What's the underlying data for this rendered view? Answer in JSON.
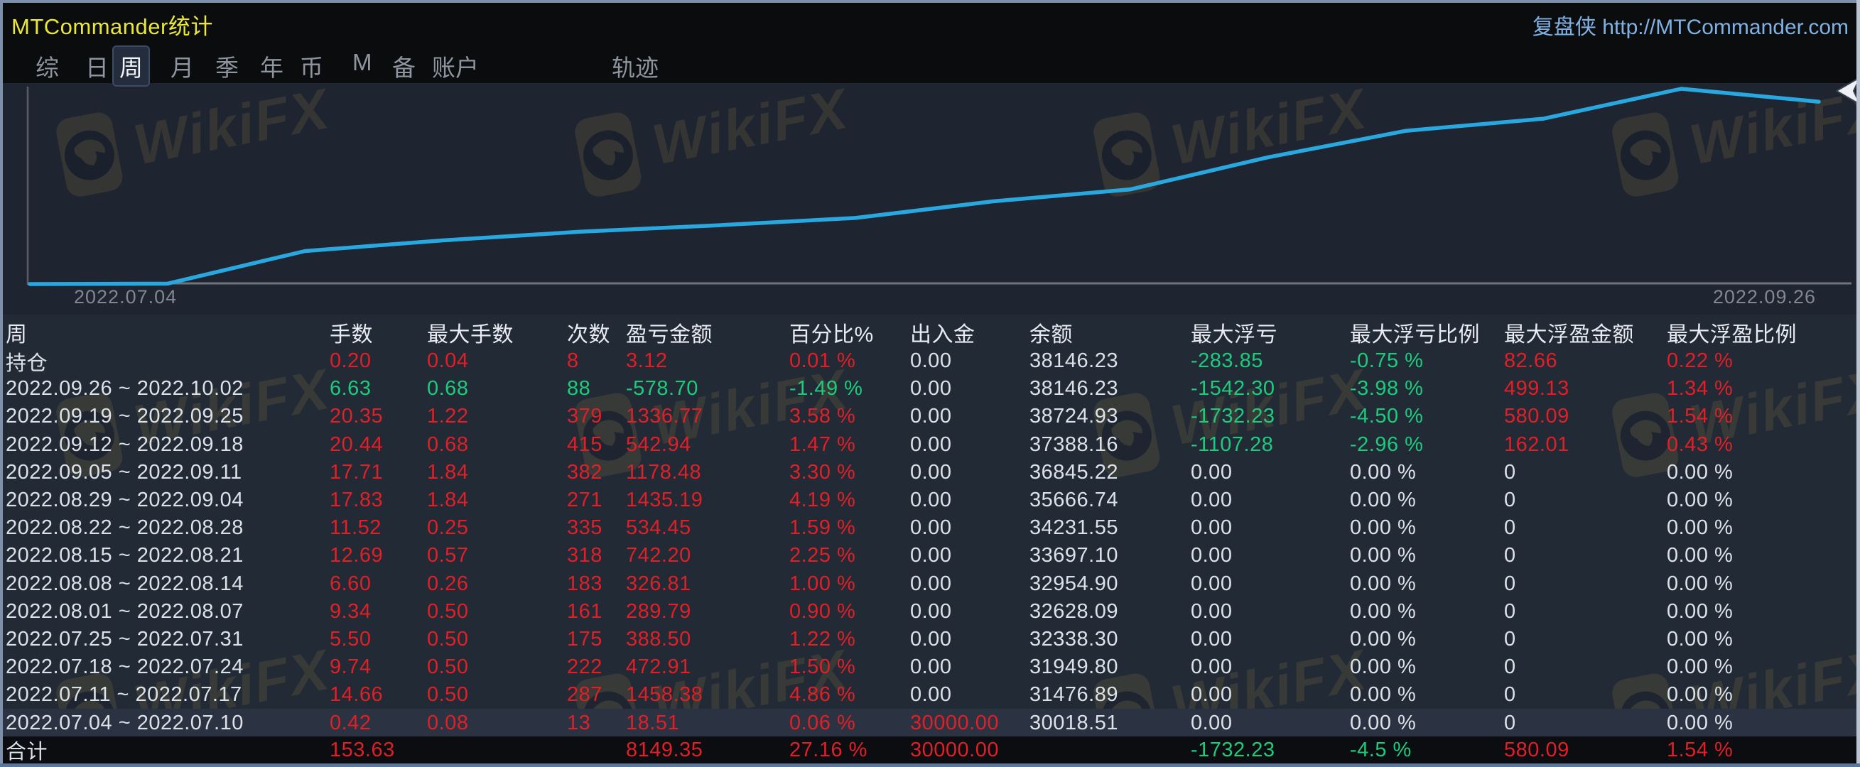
{
  "window": {
    "title": "MTCommander统计",
    "title_color": "#e9e836",
    "top_right_link": "复盘侠 http://MTCommander.com"
  },
  "tabs": [
    {
      "label": "综",
      "active": false
    },
    {
      "label": "日",
      "active": false
    },
    {
      "label": "周",
      "active": true
    },
    {
      "label": "月",
      "active": false
    },
    {
      "label": "季",
      "active": false
    },
    {
      "label": "年",
      "active": false
    },
    {
      "label": "币",
      "active": false
    },
    {
      "label": "M",
      "active": false
    },
    {
      "label": "备",
      "active": false
    },
    {
      "label": "账户",
      "active": false
    },
    {
      "label": "轨迹",
      "active": false
    }
  ],
  "watermark": {
    "brand": "WikiFX"
  },
  "chart_data": {
    "type": "line",
    "title": "weekly equity curve",
    "line_color": "#29a8e0",
    "baseline_value": 30000,
    "x_start_label": "2022.07.04",
    "x_end_label": "2022.09.26",
    "x": [
      "2022.07.04",
      "2022.07.11",
      "2022.07.18",
      "2022.07.25",
      "2022.08.01",
      "2022.08.08",
      "2022.08.15",
      "2022.08.22",
      "2022.08.29",
      "2022.09.05",
      "2022.09.12",
      "2022.09.19",
      "2022.09.26",
      "2022.10.02"
    ],
    "balances": [
      30000,
      30018.51,
      31476.89,
      31949.8,
      32338.3,
      32628.09,
      32954.9,
      33697.1,
      34231.55,
      35666.74,
      36845.22,
      37388.16,
      38724.93,
      38146.23
    ],
    "ylim": [
      29500,
      39200
    ],
    "grid": false,
    "legend": "none"
  },
  "colors": {
    "profit": "#e01f26",
    "loss": "#1ecb7d",
    "neutral": "#dce1e8"
  },
  "table": {
    "headers": [
      "周",
      "手数",
      "最大手数",
      "次数",
      "盈亏金额",
      "百分比%",
      "出入金",
      "余额",
      "最大浮亏",
      "最大浮亏比例",
      "最大浮盈金额",
      "最大浮盈比例"
    ],
    "rows": [
      {
        "highlight": false,
        "cells": [
          [
            "持仓",
            "w"
          ],
          [
            "0.20",
            "r"
          ],
          [
            "0.04",
            "r"
          ],
          [
            "8",
            "r"
          ],
          [
            "3.12",
            "r"
          ],
          [
            "0.01 %",
            "r"
          ],
          [
            "0.00",
            "w"
          ],
          [
            "38146.23",
            "w"
          ],
          [
            "-283.85",
            "g"
          ],
          [
            "-0.75 %",
            "g"
          ],
          [
            "82.66",
            "r"
          ],
          [
            "0.22 %",
            "r"
          ]
        ]
      },
      {
        "highlight": false,
        "cells": [
          [
            "2022.09.26 ~ 2022.10.02",
            "w"
          ],
          [
            "6.63",
            "g"
          ],
          [
            "0.68",
            "g"
          ],
          [
            "88",
            "g"
          ],
          [
            "-578.70",
            "g"
          ],
          [
            "-1.49 %",
            "g"
          ],
          [
            "0.00",
            "w"
          ],
          [
            "38146.23",
            "w"
          ],
          [
            "-1542.30",
            "g"
          ],
          [
            "-3.98 %",
            "g"
          ],
          [
            "499.13",
            "r"
          ],
          [
            "1.34 %",
            "r"
          ]
        ]
      },
      {
        "highlight": false,
        "cells": [
          [
            "2022.09.19 ~ 2022.09.25",
            "w"
          ],
          [
            "20.35",
            "r"
          ],
          [
            "1.22",
            "r"
          ],
          [
            "379",
            "r"
          ],
          [
            "1336.77",
            "r"
          ],
          [
            "3.58 %",
            "r"
          ],
          [
            "0.00",
            "w"
          ],
          [
            "38724.93",
            "w"
          ],
          [
            "-1732.23",
            "g"
          ],
          [
            "-4.50 %",
            "g"
          ],
          [
            "580.09",
            "r"
          ],
          [
            "1.54 %",
            "r"
          ]
        ]
      },
      {
        "highlight": false,
        "cells": [
          [
            "2022.09.12 ~ 2022.09.18",
            "w"
          ],
          [
            "20.44",
            "r"
          ],
          [
            "0.68",
            "r"
          ],
          [
            "415",
            "r"
          ],
          [
            "542.94",
            "r"
          ],
          [
            "1.47 %",
            "r"
          ],
          [
            "0.00",
            "w"
          ],
          [
            "37388.16",
            "w"
          ],
          [
            "-1107.28",
            "g"
          ],
          [
            "-2.96 %",
            "g"
          ],
          [
            "162.01",
            "r"
          ],
          [
            "0.43 %",
            "r"
          ]
        ]
      },
      {
        "highlight": false,
        "cells": [
          [
            "2022.09.05 ~ 2022.09.11",
            "w"
          ],
          [
            "17.71",
            "r"
          ],
          [
            "1.84",
            "r"
          ],
          [
            "382",
            "r"
          ],
          [
            "1178.48",
            "r"
          ],
          [
            "3.30 %",
            "r"
          ],
          [
            "0.00",
            "w"
          ],
          [
            "36845.22",
            "w"
          ],
          [
            "0.00",
            "w"
          ],
          [
            "0.00 %",
            "w"
          ],
          [
            "0",
            "w"
          ],
          [
            "0.00 %",
            "w"
          ]
        ]
      },
      {
        "highlight": false,
        "cells": [
          [
            "2022.08.29 ~ 2022.09.04",
            "w"
          ],
          [
            "17.83",
            "r"
          ],
          [
            "1.84",
            "r"
          ],
          [
            "271",
            "r"
          ],
          [
            "1435.19",
            "r"
          ],
          [
            "4.19 %",
            "r"
          ],
          [
            "0.00",
            "w"
          ],
          [
            "35666.74",
            "w"
          ],
          [
            "0.00",
            "w"
          ],
          [
            "0.00 %",
            "w"
          ],
          [
            "0",
            "w"
          ],
          [
            "0.00 %",
            "w"
          ]
        ]
      },
      {
        "highlight": false,
        "cells": [
          [
            "2022.08.22 ~ 2022.08.28",
            "w"
          ],
          [
            "11.52",
            "r"
          ],
          [
            "0.25",
            "r"
          ],
          [
            "335",
            "r"
          ],
          [
            "534.45",
            "r"
          ],
          [
            "1.59 %",
            "r"
          ],
          [
            "0.00",
            "w"
          ],
          [
            "34231.55",
            "w"
          ],
          [
            "0.00",
            "w"
          ],
          [
            "0.00 %",
            "w"
          ],
          [
            "0",
            "w"
          ],
          [
            "0.00 %",
            "w"
          ]
        ]
      },
      {
        "highlight": false,
        "cells": [
          [
            "2022.08.15 ~ 2022.08.21",
            "w"
          ],
          [
            "12.69",
            "r"
          ],
          [
            "0.57",
            "r"
          ],
          [
            "318",
            "r"
          ],
          [
            "742.20",
            "r"
          ],
          [
            "2.25 %",
            "r"
          ],
          [
            "0.00",
            "w"
          ],
          [
            "33697.10",
            "w"
          ],
          [
            "0.00",
            "w"
          ],
          [
            "0.00 %",
            "w"
          ],
          [
            "0",
            "w"
          ],
          [
            "0.00 %",
            "w"
          ]
        ]
      },
      {
        "highlight": false,
        "cells": [
          [
            "2022.08.08 ~ 2022.08.14",
            "w"
          ],
          [
            "6.60",
            "r"
          ],
          [
            "0.26",
            "r"
          ],
          [
            "183",
            "r"
          ],
          [
            "326.81",
            "r"
          ],
          [
            "1.00 %",
            "r"
          ],
          [
            "0.00",
            "w"
          ],
          [
            "32954.90",
            "w"
          ],
          [
            "0.00",
            "w"
          ],
          [
            "0.00 %",
            "w"
          ],
          [
            "0",
            "w"
          ],
          [
            "0.00 %",
            "w"
          ]
        ]
      },
      {
        "highlight": false,
        "cells": [
          [
            "2022.08.01 ~ 2022.08.07",
            "w"
          ],
          [
            "9.34",
            "r"
          ],
          [
            "0.50",
            "r"
          ],
          [
            "161",
            "r"
          ],
          [
            "289.79",
            "r"
          ],
          [
            "0.90 %",
            "r"
          ],
          [
            "0.00",
            "w"
          ],
          [
            "32628.09",
            "w"
          ],
          [
            "0.00",
            "w"
          ],
          [
            "0.00 %",
            "w"
          ],
          [
            "0",
            "w"
          ],
          [
            "0.00 %",
            "w"
          ]
        ]
      },
      {
        "highlight": false,
        "cells": [
          [
            "2022.07.25 ~ 2022.07.31",
            "w"
          ],
          [
            "5.50",
            "r"
          ],
          [
            "0.50",
            "r"
          ],
          [
            "175",
            "r"
          ],
          [
            "388.50",
            "r"
          ],
          [
            "1.22 %",
            "r"
          ],
          [
            "0.00",
            "w"
          ],
          [
            "32338.30",
            "w"
          ],
          [
            "0.00",
            "w"
          ],
          [
            "0.00 %",
            "w"
          ],
          [
            "0",
            "w"
          ],
          [
            "0.00 %",
            "w"
          ]
        ]
      },
      {
        "highlight": false,
        "cells": [
          [
            "2022.07.18 ~ 2022.07.24",
            "w"
          ],
          [
            "9.74",
            "r"
          ],
          [
            "0.50",
            "r"
          ],
          [
            "222",
            "r"
          ],
          [
            "472.91",
            "r"
          ],
          [
            "1.50 %",
            "r"
          ],
          [
            "0.00",
            "w"
          ],
          [
            "31949.80",
            "w"
          ],
          [
            "0.00",
            "w"
          ],
          [
            "0.00 %",
            "w"
          ],
          [
            "0",
            "w"
          ],
          [
            "0.00 %",
            "w"
          ]
        ]
      },
      {
        "highlight": false,
        "cells": [
          [
            "2022.07.11 ~ 2022.07.17",
            "w"
          ],
          [
            "14.66",
            "r"
          ],
          [
            "0.50",
            "r"
          ],
          [
            "287",
            "r"
          ],
          [
            "1458.38",
            "r"
          ],
          [
            "4.86 %",
            "r"
          ],
          [
            "0.00",
            "w"
          ],
          [
            "31476.89",
            "w"
          ],
          [
            "0.00",
            "w"
          ],
          [
            "0.00 %",
            "w"
          ],
          [
            "0",
            "w"
          ],
          [
            "0.00 %",
            "w"
          ]
        ]
      },
      {
        "highlight": true,
        "cells": [
          [
            "2022.07.04 ~ 2022.07.10",
            "w"
          ],
          [
            "0.42",
            "r"
          ],
          [
            "0.08",
            "r"
          ],
          [
            "13",
            "r"
          ],
          [
            "18.51",
            "r"
          ],
          [
            "0.06 %",
            "r"
          ],
          [
            "30000.00",
            "r"
          ],
          [
            "30018.51",
            "w"
          ],
          [
            "0.00",
            "w"
          ],
          [
            "0.00 %",
            "w"
          ],
          [
            "0",
            "w"
          ],
          [
            "0.00 %",
            "w"
          ]
        ]
      },
      {
        "highlight": false,
        "total": true,
        "cells": [
          [
            "合计",
            "w"
          ],
          [
            "153.63",
            "r"
          ],
          [
            "",
            ""
          ],
          [
            "",
            ""
          ],
          [
            "8149.35",
            "r"
          ],
          [
            "27.16 %",
            "r"
          ],
          [
            "30000.00",
            "r"
          ],
          [
            "",
            ""
          ],
          [
            "-1732.23",
            "g"
          ],
          [
            "-4.5 %",
            "g"
          ],
          [
            "580.09",
            "r"
          ],
          [
            "1.54 %",
            "r"
          ]
        ]
      }
    ]
  }
}
